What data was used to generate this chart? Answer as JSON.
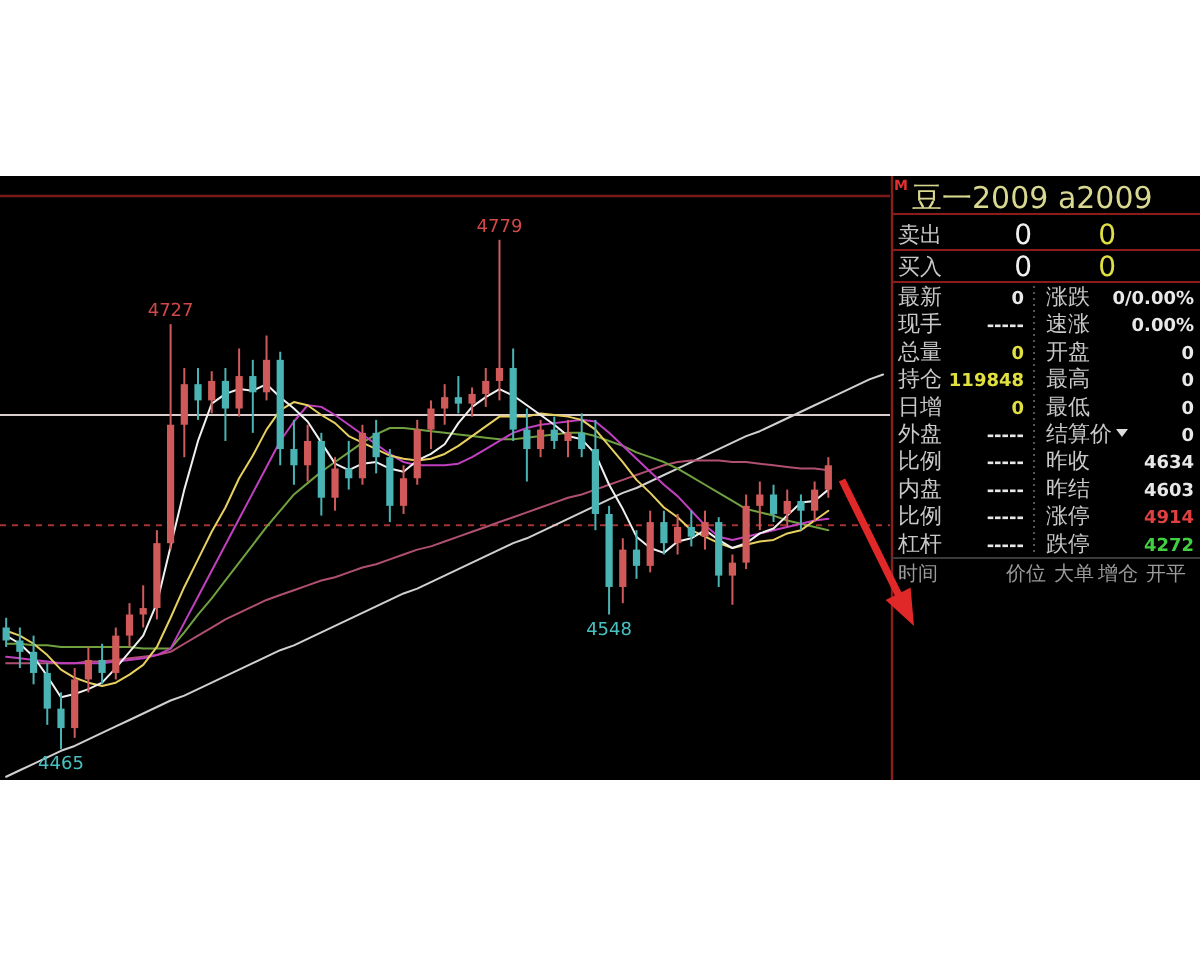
{
  "chart_data": [
    {
      "type": "candlestick",
      "categories": [
        null,
        null,
        null,
        null,
        null,
        null,
        null,
        null,
        null,
        null,
        null,
        null,
        null,
        null,
        null,
        null,
        null,
        null,
        null,
        null,
        null,
        null,
        null,
        null,
        null,
        null,
        null,
        null,
        null,
        null,
        null,
        null,
        null,
        null,
        null,
        null,
        null,
        null,
        null,
        null,
        null,
        null,
        null,
        null,
        null,
        null,
        null,
        null,
        null,
        null,
        null,
        null,
        null,
        null,
        null,
        null,
        null,
        null,
        null,
        null,
        null,
        null,
        null,
        null,
        null
      ],
      "ohlc": [
        [
          4540,
          4546,
          4528,
          4532
        ],
        [
          4532,
          4540,
          4515,
          4525
        ],
        [
          4525,
          4535,
          4505,
          4512
        ],
        [
          4512,
          4518,
          4480,
          4490
        ],
        [
          4490,
          4500,
          4465,
          4478
        ],
        [
          4478,
          4515,
          4472,
          4508
        ],
        [
          4508,
          4528,
          4500,
          4520
        ],
        [
          4520,
          4530,
          4505,
          4512
        ],
        [
          4512,
          4540,
          4508,
          4535
        ],
        [
          4535,
          4555,
          4528,
          4548
        ],
        [
          4548,
          4566,
          4540,
          4552
        ],
        [
          4552,
          4600,
          4545,
          4592
        ],
        [
          4592,
          4727,
          4588,
          4665
        ],
        [
          4665,
          4700,
          4645,
          4690
        ],
        [
          4690,
          4700,
          4668,
          4680
        ],
        [
          4680,
          4698,
          4672,
          4692
        ],
        [
          4692,
          4700,
          4655,
          4675
        ],
        [
          4675,
          4712,
          4670,
          4695
        ],
        [
          4695,
          4705,
          4660,
          4685
        ],
        [
          4685,
          4720,
          4680,
          4705
        ],
        [
          4705,
          4710,
          4640,
          4650
        ],
        [
          4650,
          4668,
          4628,
          4640
        ],
        [
          4640,
          4665,
          4630,
          4655
        ],
        [
          4655,
          4660,
          4609,
          4620
        ],
        [
          4620,
          4645,
          4612,
          4638
        ],
        [
          4638,
          4655,
          4625,
          4632
        ],
        [
          4632,
          4665,
          4628,
          4660
        ],
        [
          4660,
          4668,
          4635,
          4645
        ],
        [
          4645,
          4650,
          4605,
          4615
        ],
        [
          4615,
          4640,
          4610,
          4632
        ],
        [
          4632,
          4668,
          4628,
          4662
        ],
        [
          4662,
          4680,
          4650,
          4675
        ],
        [
          4675,
          4690,
          4665,
          4682
        ],
        [
          4682,
          4695,
          4672,
          4678
        ],
        [
          4678,
          4688,
          4670,
          4684
        ],
        [
          4684,
          4700,
          4676,
          4692
        ],
        [
          4692,
          4779,
          4680,
          4700
        ],
        [
          4700,
          4712,
          4655,
          4662
        ],
        [
          4662,
          4675,
          4630,
          4650
        ],
        [
          4650,
          4668,
          4645,
          4662
        ],
        [
          4662,
          4670,
          4650,
          4655
        ],
        [
          4655,
          4668,
          4645,
          4660
        ],
        [
          4660,
          4672,
          4645,
          4650
        ],
        [
          4650,
          4668,
          4600,
          4610
        ],
        [
          4610,
          4615,
          4548,
          4565
        ],
        [
          4565,
          4595,
          4555,
          4588
        ],
        [
          4588,
          4600,
          4570,
          4578
        ],
        [
          4578,
          4612,
          4574,
          4605
        ],
        [
          4605,
          4612,
          4585,
          4592
        ],
        [
          4592,
          4610,
          4585,
          4602
        ],
        [
          4602,
          4612,
          4590,
          4596
        ],
        [
          4596,
          4612,
          4588,
          4605
        ],
        [
          4605,
          4608,
          4565,
          4572
        ],
        [
          4572,
          4585,
          4554,
          4580
        ],
        [
          4580,
          4622,
          4576,
          4615
        ],
        [
          4615,
          4630,
          4600,
          4622
        ],
        [
          4622,
          4628,
          4605,
          4610
        ],
        [
          4610,
          4625,
          4602,
          4618
        ],
        [
          4618,
          4622,
          4600,
          4612
        ],
        [
          4612,
          4630,
          4605,
          4625
        ],
        [
          4625,
          4645,
          4620,
          4640
        ],
        null,
        null,
        null,
        null
      ],
      "colors": [
        "#4ab4b4",
        "#4ab4b4",
        "#4ab4b4",
        "#4ab4b4",
        "#4ab4b4",
        "#d05a5a",
        "#d05a5a",
        "#4ab4b4",
        "#d05a5a",
        "#d05a5a",
        "#d05a5a",
        "#d05a5a",
        "#d05a5a",
        "#d05a5a",
        "#4ab4b4",
        "#d05a5a",
        "#4ab4b4",
        "#d05a5a",
        "#4ab4b4",
        "#d05a5a",
        "#4ab4b4",
        "#4ab4b4",
        "#d05a5a",
        "#4ab4b4",
        "#d05a5a",
        "#4ab4b4",
        "#d05a5a",
        "#4ab4b4",
        "#4ab4b4",
        "#d05a5a",
        "#d05a5a",
        "#d05a5a",
        "#d05a5a",
        "#4ab4b4",
        "#d05a5a",
        "#d05a5a",
        "#d05a5a",
        "#4ab4b4",
        "#4ab4b4",
        "#d05a5a",
        "#4ab4b4",
        "#d05a5a",
        "#4ab4b4",
        "#4ab4b4",
        "#4ab4b4",
        "#d05a5a",
        "#4ab4b4",
        "#d05a5a",
        "#4ab4b4",
        "#d05a5a",
        "#4ab4b4",
        "#d05a5a",
        "#4ab4b4",
        "#d05a5a",
        "#d05a5a",
        "#d05a5a",
        "#4ab4b4",
        "#d05a5a",
        "#4ab4b4",
        "#d05a5a",
        "#d05a5a",
        null,
        null,
        null,
        null
      ],
      "ylim": [
        4446,
        4806
      ],
      "series": [
        {
          "type": "line",
          "color": "#d0d0d0",
          "values": [
            4448,
            4452,
            4456,
            4460,
            4464,
            4467,
            4471,
            4475,
            4479,
            4483,
            4487,
            4491,
            4495,
            4498,
            4502,
            4506,
            4510,
            4514,
            4518,
            4522,
            4526,
            4529,
            4533,
            4537,
            4541,
            4545,
            4549,
            4553,
            4557,
            4561,
            4564,
            4568,
            4572,
            4576,
            4580,
            4584,
            4588,
            4592,
            4595,
            4599,
            4603,
            4607,
            4611,
            4615,
            4619,
            4623,
            4626,
            4630,
            4634,
            4638,
            4642,
            4646,
            4650,
            4654,
            4658,
            4661,
            4665,
            4669,
            4673,
            4677,
            4681,
            4685,
            4689,
            4693,
            4696
          ]
        },
        {
          "type": "line",
          "color": "#b05070",
          "values": [
            4518,
            4518,
            4518,
            4518,
            4518,
            4518,
            4519,
            4519,
            4520,
            4521,
            4522,
            4523,
            4525,
            4530,
            4535,
            4540,
            4545,
            4549,
            4553,
            4557,
            4560,
            4563,
            4566,
            4569,
            4571,
            4574,
            4577,
            4579,
            4582,
            4585,
            4588,
            4590,
            4593,
            4596,
            4599,
            4602,
            4605,
            4608,
            4611,
            4614,
            4617,
            4620,
            4622,
            4625,
            4628,
            4631,
            4634,
            4637,
            4640,
            4642,
            4643,
            4643,
            4643,
            4642,
            4642,
            4641,
            4640,
            4639,
            4638,
            4638,
            4637,
            null,
            null,
            null,
            null
          ]
        },
        {
          "type": "line",
          "color": "#70a040",
          "values": [
            4530,
            4530,
            4529,
            4529,
            4528,
            4528,
            4528,
            4528,
            4528,
            4528,
            4527,
            4527,
            4527,
            4537,
            4548,
            4558,
            4569,
            4580,
            4591,
            4602,
            4612,
            4622,
            4629,
            4636,
            4642,
            4648,
            4654,
            4659,
            4663,
            4663,
            4662,
            4661,
            4660,
            4659,
            4658,
            4657,
            4656,
            4656,
            4657,
            4658,
            4659,
            4660,
            4660,
            4658,
            4655,
            4652,
            4648,
            4645,
            4642,
            4638,
            4633,
            4628,
            4623,
            4618,
            4613,
            4611,
            4609,
            4606,
            4604,
            4602,
            4600,
            null,
            null,
            null,
            null
          ]
        },
        {
          "type": "line",
          "color": "#c040c0",
          "values": [
            4522,
            4521,
            4520,
            4519,
            4518,
            4518,
            4518,
            4518,
            4519,
            4520,
            4521,
            4523,
            4527,
            4543,
            4559,
            4575,
            4591,
            4607,
            4623,
            4639,
            4655,
            4667,
            4677,
            4676,
            4671,
            4665,
            4659,
            4653,
            4647,
            4642,
            4640,
            4640,
            4640,
            4641,
            4645,
            4650,
            4655,
            4660,
            4663,
            4665,
            4666,
            4667,
            4668,
            4667,
            4660,
            4652,
            4644,
            4636,
            4628,
            4621,
            4612,
            4603,
            4596,
            4594,
            4596,
            4598,
            4600,
            4602,
            4604,
            4606,
            4607,
            null,
            null,
            null,
            null
          ]
        },
        {
          "type": "line",
          "color": "#e8d060",
          "values": [
            4538,
            4535,
            4530,
            4523,
            4514,
            4509,
            4506,
            4504,
            4506,
            4511,
            4517,
            4528,
            4546,
            4565,
            4582,
            4599,
            4614,
            4632,
            4646,
            4662,
            4674,
            4679,
            4677,
            4671,
            4666,
            4658,
            4654,
            4650,
            4646,
            4644,
            4643,
            4644,
            4647,
            4652,
            4658,
            4664,
            4670,
            4670,
            4670,
            4672,
            4671,
            4670,
            4668,
            4662,
            4652,
            4642,
            4631,
            4623,
            4614,
            4608,
            4600,
            4596,
            4592,
            4589,
            4591,
            4593,
            4594,
            4598,
            4600,
            4606,
            4612,
            null,
            null,
            null,
            null
          ]
        },
        {
          "type": "line",
          "color": "#f0f0f0",
          "values": [
            4535,
            4530,
            4522,
            4510,
            4497,
            4499,
            4502,
            4506,
            4515,
            4525,
            4535,
            4555,
            4590,
            4625,
            4655,
            4678,
            4684,
            4687,
            4686,
            4690,
            4682,
            4675,
            4667,
            4654,
            4641,
            4637,
            4641,
            4642,
            4638,
            4636,
            4643,
            4647,
            4653,
            4666,
            4676,
            4682,
            4687,
            4683,
            4677,
            4671,
            4665,
            4658,
            4656,
            4647,
            4628,
            4613,
            4596,
            4589,
            4586,
            4593,
            4595,
            4600,
            4594,
            4589,
            4592,
            4598,
            4601,
            4609,
            4617,
            4618,
            4625,
            null,
            null,
            null,
            null
          ]
        }
      ],
      "ref_lines": [
        {
          "axis": "y",
          "value": 4671,
          "color": "#d8cccc"
        },
        {
          "axis": "y",
          "value": 4603,
          "color": "#a83232",
          "line_style": "dashed"
        }
      ],
      "annotations": [
        {
          "text": "4727",
          "y": 4727
        },
        {
          "text": "4779",
          "y": 4779
        },
        {
          "text": "4548",
          "y": 4548
        },
        {
          "text": "4465",
          "y": 4465
        }
      ],
      "tick_labels": false
    },
    {
      "type": "other",
      "title": "豆一2009 a2009",
      "annotations": [
        "M",
        "卖出",
        "0",
        "0",
        "买入",
        "0",
        "0",
        "最新",
        "0",
        "涨跌",
        "0/0.00%",
        "现手",
        "-----",
        "速涨",
        "0.00%",
        "总量",
        "0",
        "开盘",
        "0",
        "持仓",
        "119848",
        "最高",
        "0",
        "日增",
        "0",
        "最低",
        "0",
        "外盘",
        "-----",
        "结算价",
        "0",
        "比例",
        "-----",
        "昨收",
        "4634",
        "内盘",
        "-----",
        "昨结",
        "4603",
        "比例",
        "-----",
        "涨停",
        "4914",
        "杠杆",
        "-----",
        "跌停",
        "4272",
        "时间",
        "价位",
        "大单",
        "增仓",
        "开平"
      ]
    }
  ]
}
